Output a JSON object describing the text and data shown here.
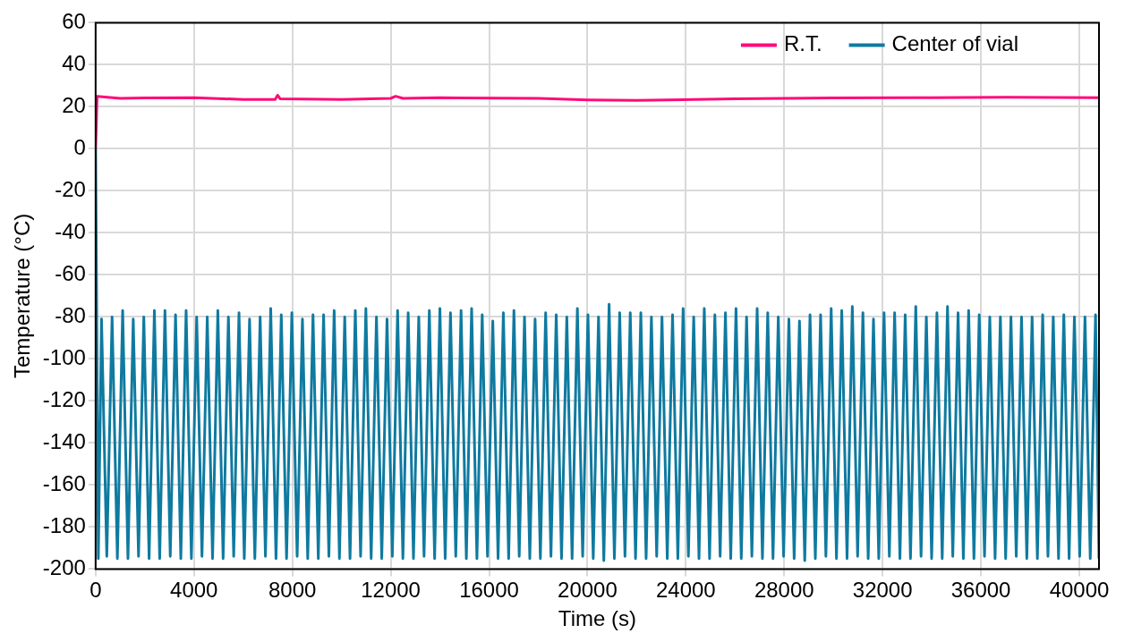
{
  "chart_data": {
    "type": "line",
    "xlabel": "Time (s)",
    "ylabel": "Temperature (°C)",
    "xlim": [
      0,
      40800
    ],
    "xticks": [
      0,
      4000,
      8000,
      12000,
      16000,
      20000,
      24000,
      28000,
      32000,
      36000,
      40000
    ],
    "ylim": [
      -200,
      60
    ],
    "yticks": [
      -200,
      -180,
      -160,
      -140,
      -120,
      -100,
      -80,
      -60,
      -40,
      -20,
      0,
      20,
      40,
      60
    ],
    "grid": true,
    "legend": "top right",
    "marker": "none",
    "line_style": "solid",
    "series": [
      {
        "name": "R.T.",
        "color": "#ff0a78",
        "x": [
          0,
          60,
          1000,
          2000,
          4000,
          6000,
          7300,
          7400,
          7500,
          10000,
          12000,
          12200,
          12500,
          14000,
          18000,
          20000,
          22000,
          26000,
          30000,
          34000,
          37000,
          40800
        ],
        "values": [
          0,
          25,
          24,
          24.2,
          24.3,
          23.5,
          23.5,
          25.5,
          23.8,
          23.5,
          24,
          25,
          24,
          24.3,
          24,
          23.3,
          23,
          23.8,
          24.2,
          24.3,
          24.5,
          24.3
        ]
      },
      {
        "name": "Center of vial",
        "color": "#0f7aa0",
        "x": [
          0,
          110,
          240,
          455,
          670,
          885,
          1100,
          1315,
          1530,
          1745,
          1960,
          2175,
          2390,
          2605,
          2820,
          3035,
          3250,
          3465,
          3680,
          3895,
          4110,
          4325,
          4540,
          4755,
          4970,
          5185,
          5400,
          5615,
          5830,
          6045,
          6260,
          6475,
          6690,
          6905,
          7120,
          7335,
          7550,
          7765,
          7980,
          8195,
          8410,
          8625,
          8840,
          9055,
          9270,
          9485,
          9700,
          9915,
          10130,
          10345,
          10560,
          10775,
          10990,
          11205,
          11420,
          11635,
          11850,
          12065,
          12280,
          12495,
          12710,
          12925,
          13140,
          13355,
          13570,
          13785,
          14000,
          14215,
          14430,
          14645,
          14860,
          15075,
          15290,
          15505,
          15720,
          15935,
          16150,
          16365,
          16580,
          16795,
          17010,
          17225,
          17440,
          17655,
          17870,
          18085,
          18300,
          18515,
          18730,
          18945,
          19160,
          19375,
          19590,
          19805,
          20020,
          20235,
          20450,
          20665,
          20880,
          21095,
          21310,
          21525,
          21740,
          21955,
          22170,
          22385,
          22600,
          22815,
          23030,
          23245,
          23460,
          23675,
          23890,
          24105,
          24320,
          24535,
          24750,
          24965,
          25180,
          25395,
          25610,
          25825,
          26040,
          26255,
          26470,
          26685,
          26900,
          27115,
          27330,
          27545,
          27760,
          27975,
          28190,
          28405,
          28620,
          28835,
          29050,
          29265,
          29480,
          29695,
          29910,
          30125,
          30340,
          30555,
          30770,
          30985,
          31200,
          31415,
          31630,
          31845,
          32060,
          32275,
          32490,
          32705,
          32920,
          33135,
          33350,
          33565,
          33780,
          33995,
          34210,
          34425,
          34640,
          34855,
          35070,
          35285,
          35500,
          35715,
          35930,
          36145,
          36360,
          36575,
          36790,
          37005,
          37220,
          37435,
          37650,
          37865,
          38080,
          38295,
          38510,
          38725,
          38940,
          39155,
          39370,
          39585,
          39800,
          40015,
          40230,
          40445,
          40660,
          40800
        ],
        "values": [
          0,
          -195,
          -81,
          -194,
          -80,
          -195,
          -77,
          -195,
          -81,
          -194,
          -80,
          -195,
          -77,
          -195,
          -77,
          -194,
          -79,
          -195,
          -77,
          -195,
          -80,
          -194,
          -80,
          -195,
          -77,
          -195,
          -80,
          -194,
          -78,
          -195,
          -81,
          -195,
          -80,
          -194,
          -76,
          -195,
          -79,
          -195,
          -78,
          -194,
          -81,
          -195,
          -79,
          -195,
          -79,
          -194,
          -77,
          -195,
          -80,
          -195,
          -77,
          -194,
          -76,
          -195,
          -80,
          -195,
          -81,
          -194,
          -77,
          -195,
          -78,
          -195,
          -80,
          -194,
          -77,
          -195,
          -76,
          -195,
          -78,
          -194,
          -77,
          -195,
          -76,
          -195,
          -79,
          -194,
          -82,
          -195,
          -78,
          -195,
          -77,
          -194,
          -80,
          -195,
          -81,
          -195,
          -78,
          -194,
          -79,
          -195,
          -80,
          -195,
          -76,
          -194,
          -79,
          -195,
          -80,
          -196,
          -74,
          -195,
          -78,
          -194,
          -78,
          -195,
          -78,
          -195,
          -80,
          -194,
          -80,
          -195,
          -79,
          -195,
          -76,
          -194,
          -80,
          -195,
          -76,
          -195,
          -79,
          -194,
          -78,
          -195,
          -76,
          -195,
          -80,
          -194,
          -76,
          -195,
          -78,
          -195,
          -80,
          -194,
          -81,
          -195,
          -82,
          -196,
          -79,
          -195,
          -79,
          -194,
          -76,
          -195,
          -77,
          -195,
          -75,
          -194,
          -78,
          -195,
          -81,
          -195,
          -78,
          -194,
          -78,
          -195,
          -79,
          -195,
          -75,
          -194,
          -80,
          -195,
          -78,
          -195,
          -75,
          -194,
          -78,
          -195,
          -77,
          -195,
          -79,
          -194,
          -80,
          -195,
          -80,
          -195,
          -80,
          -194,
          -80,
          -195,
          -80,
          -195,
          -79,
          -194,
          -80,
          -195,
          -79,
          -195,
          -80,
          -194,
          -80,
          -195,
          -79,
          -195
        ]
      }
    ]
  }
}
